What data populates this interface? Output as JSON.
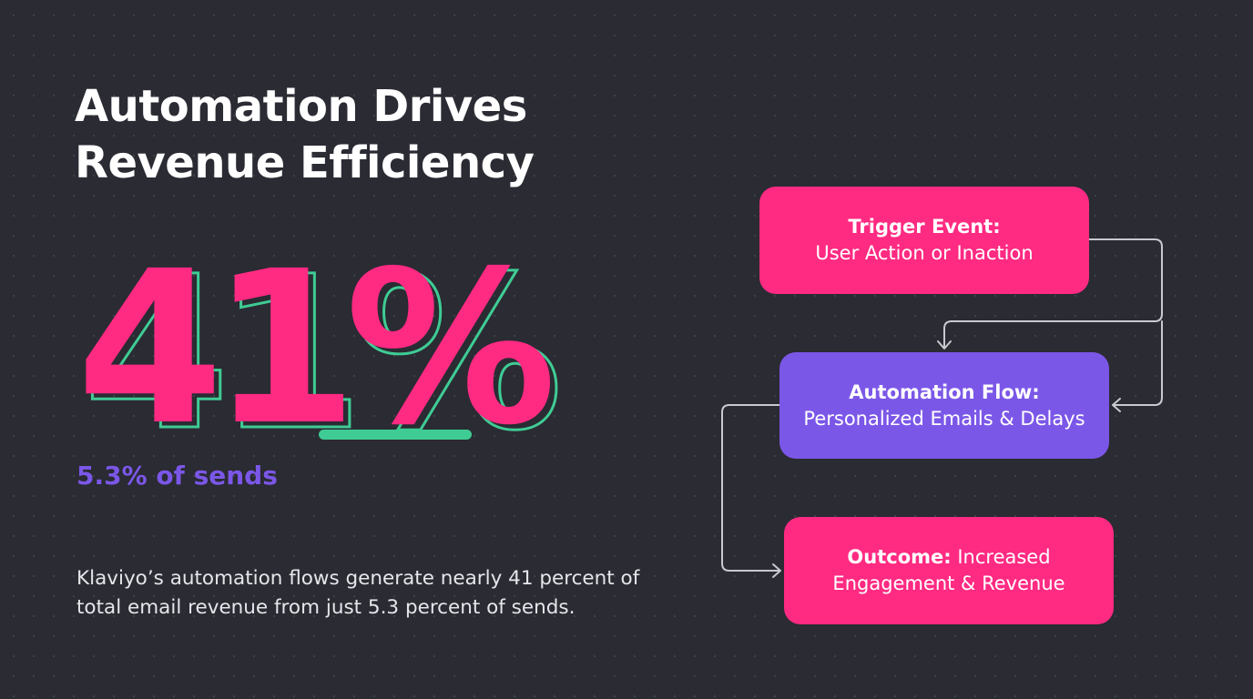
{
  "title": {
    "line1": "Automation Drives",
    "line2": "Revenue Efficiency"
  },
  "headline_stat": {
    "value": "41%",
    "sub": "5.3% of sends"
  },
  "description": {
    "line1": "Klaviyo’s automation flows generate nearly 41 percent of",
    "line2": "total email revenue from just 5.3 percent of sends."
  },
  "flow": {
    "trigger": {
      "heading": "Trigger Event:",
      "text": "User Action or Inaction"
    },
    "automation": {
      "heading": "Automation Flow:",
      "text": "Personalized Emails & Delays"
    },
    "outcome": {
      "heading": "Outcome:",
      "text_1": "Increased",
      "text_2": "Engagement & Revenue"
    }
  },
  "colors": {
    "background": "#2a2b33",
    "pink": "#ff2a82",
    "purple": "#7b57e8",
    "green": "#3fcc94",
    "connector": "#c9c9cf"
  }
}
